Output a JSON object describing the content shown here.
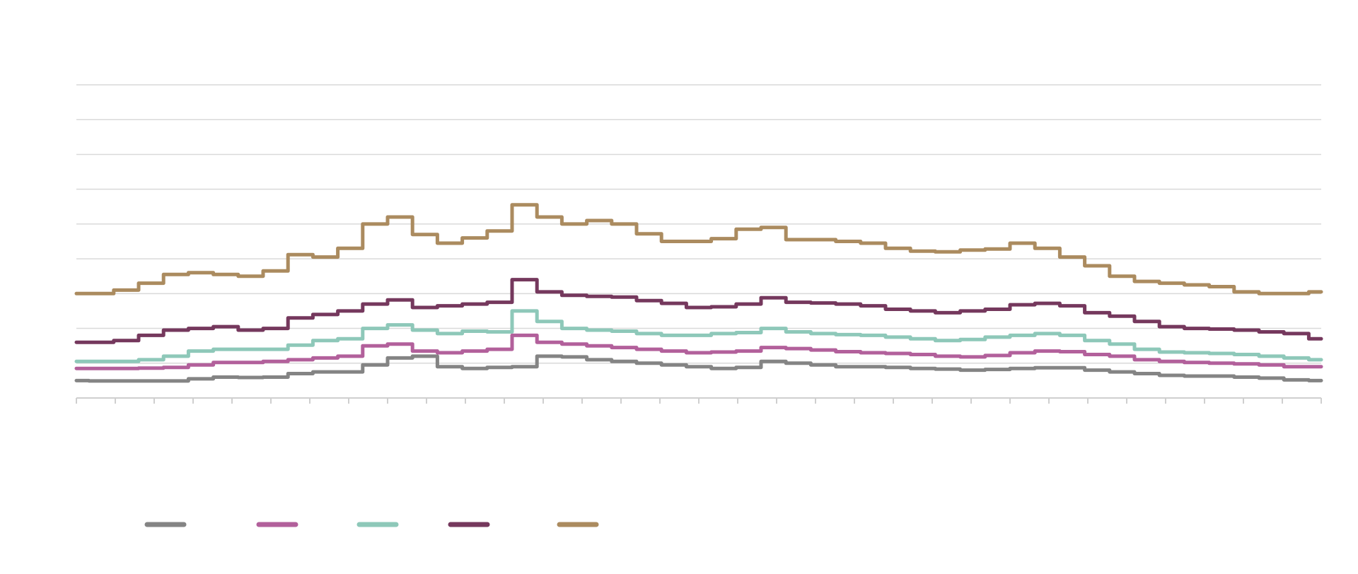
{
  "chart_data": {
    "type": "line",
    "title": "",
    "xlabel": "",
    "ylabel": "",
    "grid": true,
    "legend_position": "bottom-left",
    "ylim": [
      0,
      9
    ],
    "x": [
      0,
      2,
      4,
      6,
      8,
      10,
      12,
      14,
      16,
      18,
      20,
      22,
      24,
      26,
      28,
      30,
      32,
      34,
      36,
      38,
      40,
      42,
      44,
      46,
      48,
      50,
      52,
      54,
      56,
      58,
      60,
      62,
      64,
      66,
      68,
      70,
      72,
      74,
      76,
      78,
      80,
      82,
      84,
      86,
      88,
      90,
      92,
      94,
      96,
      98,
      100
    ],
    "series": [
      {
        "name": "",
        "color": "#848484",
        "values": [
          0.5,
          0.49,
          0.49,
          0.49,
          0.49,
          0.55,
          0.6,
          0.59,
          0.6,
          0.7,
          0.75,
          0.75,
          0.95,
          1.15,
          1.2,
          0.9,
          0.85,
          0.88,
          0.9,
          1.2,
          1.18,
          1.1,
          1.05,
          1.0,
          0.95,
          0.9,
          0.85,
          0.88,
          1.05,
          1.0,
          0.95,
          0.9,
          0.9,
          0.88,
          0.85,
          0.83,
          0.8,
          0.82,
          0.85,
          0.87,
          0.87,
          0.8,
          0.75,
          0.7,
          0.65,
          0.63,
          0.63,
          0.6,
          0.57,
          0.52,
          0.5
        ]
      },
      {
        "name": "",
        "color": "#b2609b",
        "values": [
          0.85,
          0.85,
          0.85,
          0.86,
          0.88,
          0.95,
          1.02,
          1.02,
          1.05,
          1.1,
          1.15,
          1.2,
          1.5,
          1.55,
          1.35,
          1.3,
          1.35,
          1.4,
          1.8,
          1.6,
          1.55,
          1.5,
          1.45,
          1.4,
          1.35,
          1.3,
          1.32,
          1.35,
          1.45,
          1.42,
          1.38,
          1.33,
          1.3,
          1.28,
          1.25,
          1.2,
          1.18,
          1.22,
          1.3,
          1.35,
          1.33,
          1.25,
          1.2,
          1.1,
          1.05,
          1.02,
          1.0,
          0.98,
          0.95,
          0.9,
          0.9
        ]
      },
      {
        "name": "",
        "color": "#8ec8b9",
        "values": [
          1.05,
          1.05,
          1.05,
          1.1,
          1.2,
          1.35,
          1.4,
          1.4,
          1.4,
          1.52,
          1.65,
          1.7,
          2.0,
          2.1,
          1.95,
          1.85,
          1.92,
          1.9,
          2.5,
          2.2,
          2.0,
          1.95,
          1.92,
          1.85,
          1.8,
          1.8,
          1.85,
          1.88,
          2.0,
          1.9,
          1.85,
          1.82,
          1.8,
          1.75,
          1.7,
          1.65,
          1.68,
          1.75,
          1.8,
          1.85,
          1.8,
          1.65,
          1.55,
          1.4,
          1.32,
          1.3,
          1.28,
          1.25,
          1.2,
          1.15,
          1.1
        ]
      },
      {
        "name": "",
        "color": "#75385d",
        "values": [
          1.6,
          1.6,
          1.65,
          1.8,
          1.95,
          2.0,
          2.05,
          1.95,
          2.0,
          2.3,
          2.4,
          2.5,
          2.7,
          2.82,
          2.6,
          2.65,
          2.7,
          2.75,
          3.4,
          3.05,
          2.95,
          2.92,
          2.9,
          2.8,
          2.72,
          2.6,
          2.62,
          2.7,
          2.88,
          2.75,
          2.73,
          2.7,
          2.65,
          2.55,
          2.5,
          2.45,
          2.5,
          2.55,
          2.68,
          2.72,
          2.65,
          2.45,
          2.35,
          2.2,
          2.05,
          2.0,
          1.98,
          1.95,
          1.9,
          1.85,
          1.7
        ]
      },
      {
        "name": "",
        "color": "#ab8b5f",
        "values": [
          3.0,
          3.0,
          3.1,
          3.3,
          3.55,
          3.6,
          3.55,
          3.5,
          3.65,
          4.12,
          4.05,
          4.3,
          5.0,
          5.2,
          4.7,
          4.45,
          4.6,
          4.8,
          5.55,
          5.2,
          5.0,
          5.1,
          5.0,
          4.72,
          4.5,
          4.5,
          4.58,
          4.85,
          4.9,
          4.55,
          4.55,
          4.5,
          4.45,
          4.3,
          4.22,
          4.2,
          4.25,
          4.28,
          4.45,
          4.3,
          4.05,
          3.8,
          3.5,
          3.35,
          3.3,
          3.25,
          3.2,
          3.05,
          3.0,
          3.0,
          3.05
        ]
      }
    ]
  }
}
